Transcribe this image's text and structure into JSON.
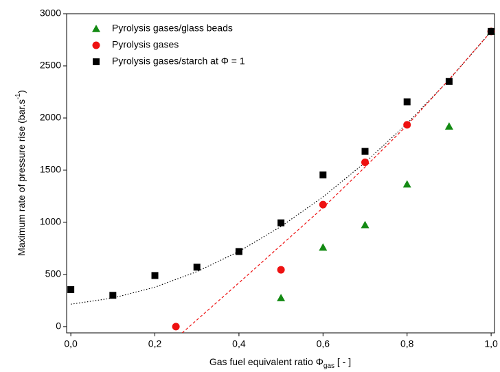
{
  "chart_data": {
    "type": "scatter",
    "x_label": [
      "Gas fuel equivalent ratio Φ",
      "gas",
      " [ - ]"
    ],
    "y_label": [
      "Maximum rate of pressure rise (bar.s",
      "-1",
      ")"
    ],
    "xlim": [
      -0.01,
      1.008
    ],
    "ylim": [
      -60,
      3000
    ],
    "xticks": [
      {
        "value": 0,
        "label": "0,0"
      },
      {
        "value": 0.2,
        "label": "0,2"
      },
      {
        "value": 0.4,
        "label": "0,4"
      },
      {
        "value": 0.6,
        "label": "0,6"
      },
      {
        "value": 0.8,
        "label": "0,8"
      },
      {
        "value": 1,
        "label": "1,0"
      }
    ],
    "yticks": [
      0,
      500,
      1000,
      1500,
      2000,
      2500,
      3000
    ],
    "legend": "top-left",
    "series": [
      {
        "name": "Pyrolysis gases/glass beads",
        "color": "#138a13",
        "marker": "triangle",
        "x": [
          0.5,
          0.6,
          0.7,
          0.8,
          0.9,
          1.0
        ],
        "values": [
          275,
          760,
          975,
          1365,
          1920,
          2830
        ]
      },
      {
        "name": "Pyrolysis gases",
        "color": "#ee1111",
        "marker": "circle",
        "x": [
          0.25,
          0.5,
          0.6,
          0.7,
          0.8,
          1.0
        ],
        "values": [
          0,
          545,
          1170,
          1575,
          1935,
          2830
        ]
      },
      {
        "name": "Pyrolysis gases/starch at Φ = 1",
        "color": "#000000",
        "marker": "square",
        "x": [
          0,
          0.1,
          0.2,
          0.3,
          0.4,
          0.5,
          0.6,
          0.7,
          0.8,
          0.9,
          1.0
        ],
        "values": [
          355,
          300,
          490,
          570,
          720,
          995,
          1455,
          1680,
          2155,
          2350,
          2830
        ]
      }
    ],
    "fits": [
      {
        "color": "#000000",
        "dash": "1.5 2.5",
        "x": [
          0,
          0.1,
          0.2,
          0.3,
          0.4,
          0.5,
          0.6,
          0.7,
          0.8,
          0.9,
          1.0
        ],
        "values": [
          215,
          274,
          378,
          527,
          721,
          960,
          1244,
          1573,
          1947,
          2366,
          2830
        ]
      },
      {
        "color": "#ee1111",
        "dash": "4 3",
        "x": [
          0.265,
          0.4,
          0.5,
          0.6,
          0.7,
          0.8,
          0.9,
          1.0
        ],
        "values": [
          -60,
          420,
          780,
          1140,
          1530,
          1930,
          2370,
          2830
        ]
      }
    ]
  }
}
